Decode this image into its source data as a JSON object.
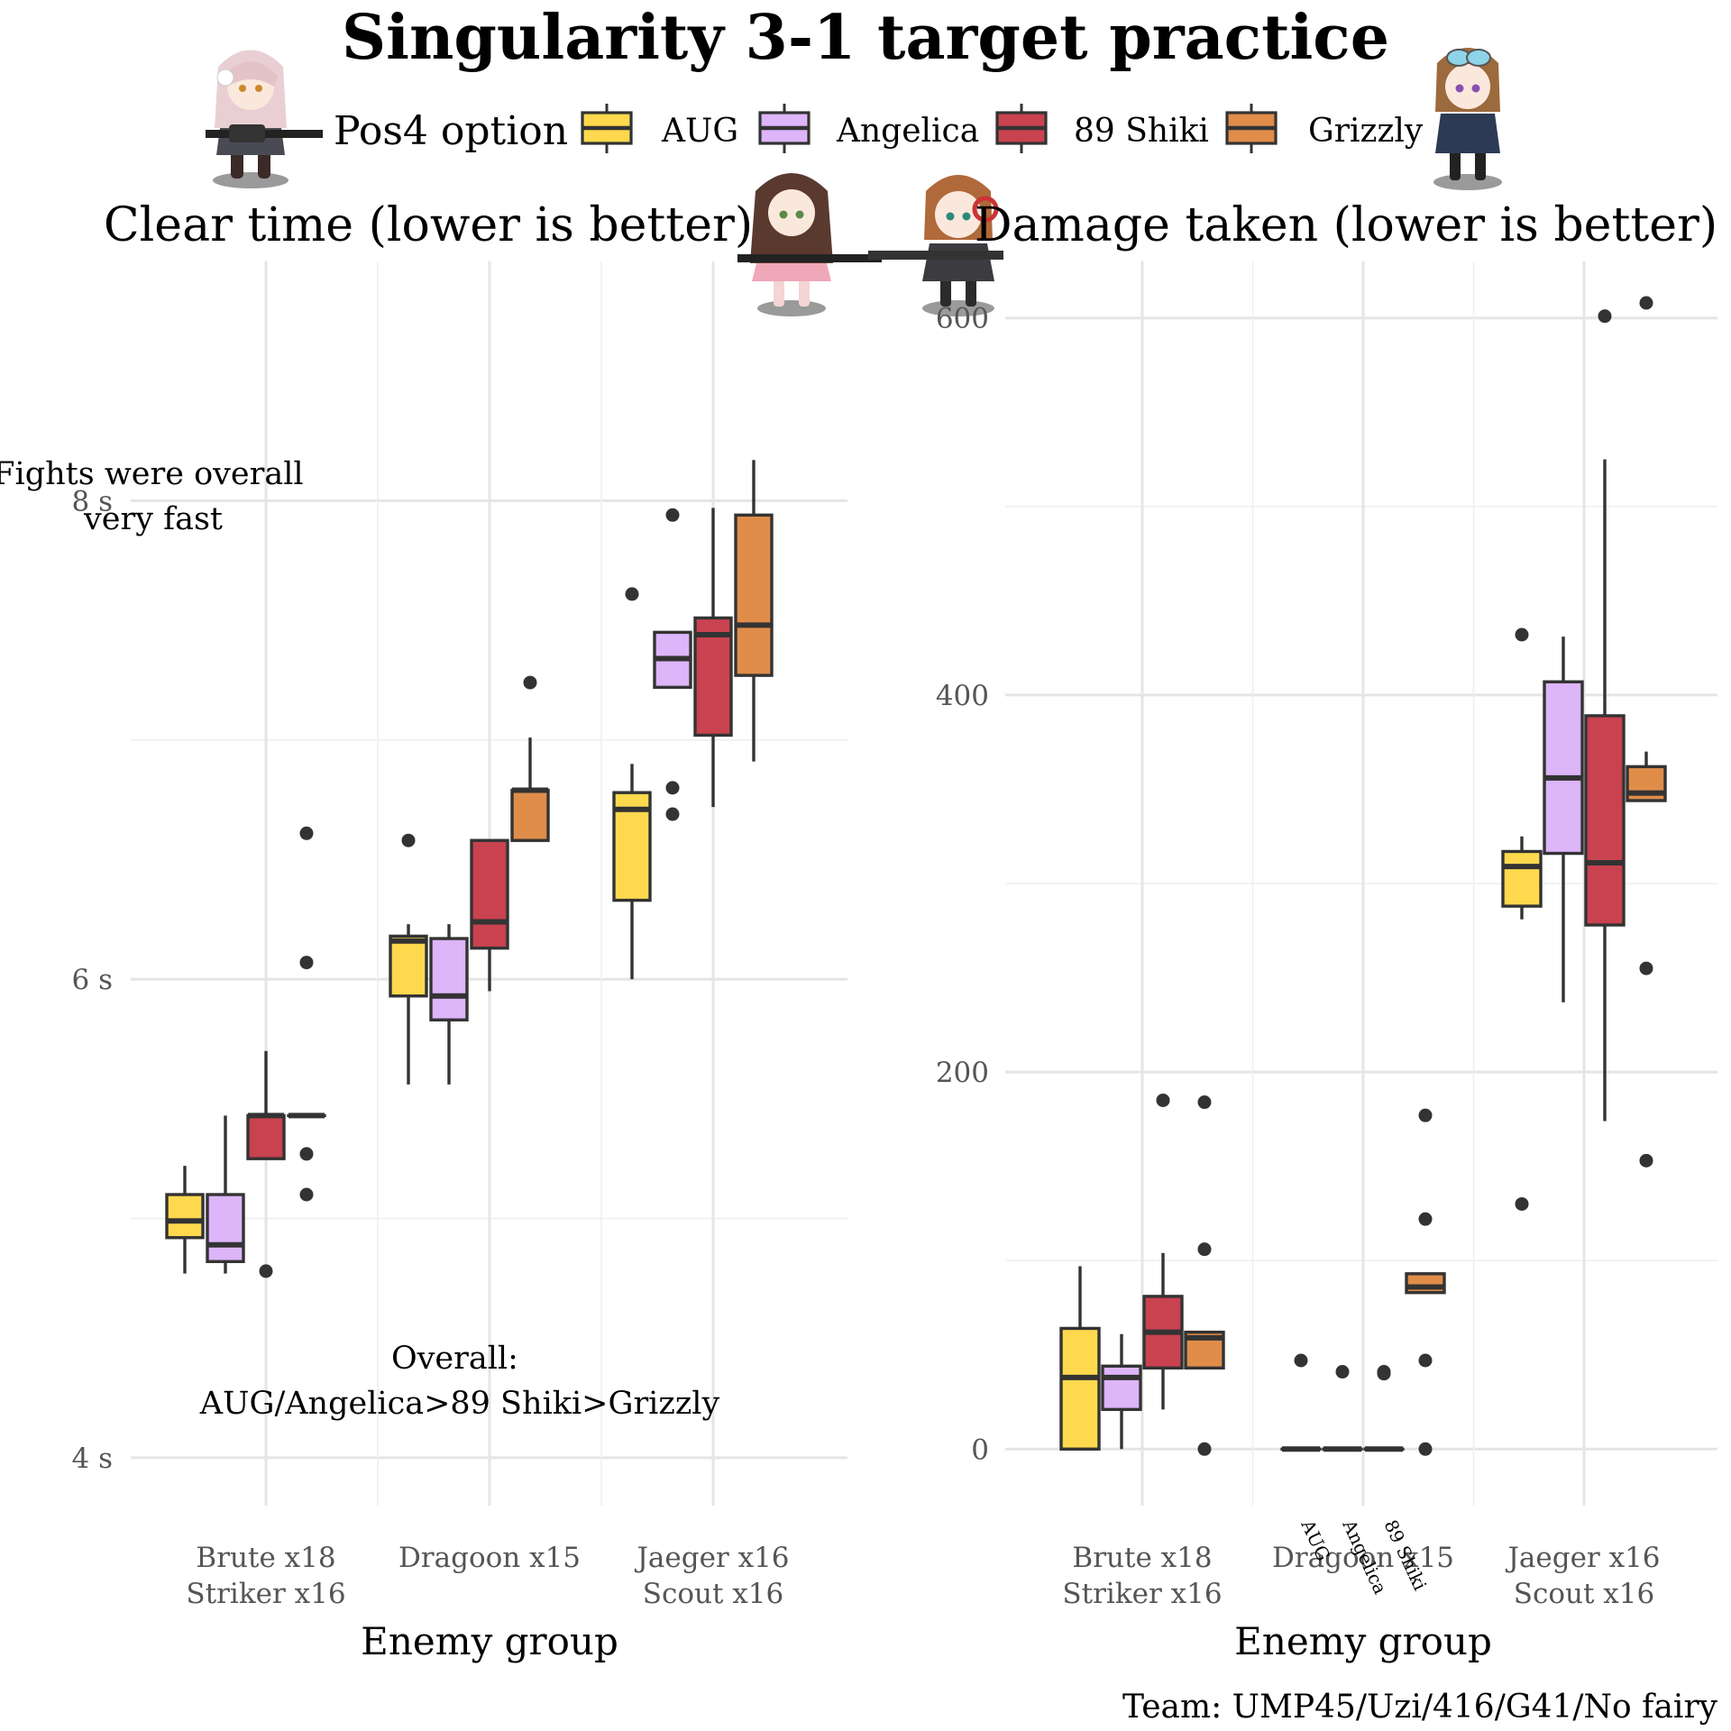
{
  "title": "Singularity 3-1 target practice",
  "caption": "Team: UMP45/Uzi/416/G41/No fairy",
  "legend": {
    "title": "Pos4 option",
    "position": "top",
    "items": [
      {
        "label": "AUG",
        "color": "#FFD94D"
      },
      {
        "label": "Angelica",
        "color": "#DDB5F9"
      },
      {
        "label": "89 Shiki",
        "color": "#C9424F"
      },
      {
        "label": "Grizzly",
        "color": "#E08D4A"
      }
    ]
  },
  "decorations": [
    "chibi-character-pink-hair",
    "chibi-character-brown-hair",
    "chibi-character-headphones",
    "chibi-character-goggles"
  ],
  "chart_data": [
    {
      "type": "box",
      "title": "Clear time (lower is better)",
      "xlabel": "Enemy group",
      "ylabel": "",
      "ylim": [
        3.8,
        9.0
      ],
      "y_tick_values": [
        4,
        6,
        8
      ],
      "y_tick_labels": [
        "4 s",
        "6 s",
        "8 s"
      ],
      "grid": true,
      "categories": [
        "Brute x18\nStriker x16",
        "Dragoon x15",
        "Jaeger x16\nScout x16"
      ],
      "annotations": [
        {
          "text": "Fights were overall\nvery fast"
        },
        {
          "text": "Overall:\nAUG/Angelica>89 Shiki>Grizzly"
        }
      ],
      "series": [
        {
          "name": "AUG",
          "boxes": [
            {
              "whislo": 4.77,
              "q1": 4.92,
              "med": 4.99,
              "q3": 5.1,
              "whishi": 5.22,
              "fliers": []
            },
            {
              "whislo": 5.56,
              "q1": 5.93,
              "med": 6.16,
              "q3": 6.18,
              "whishi": 6.23,
              "fliers": [
                6.58
              ]
            },
            {
              "whislo": 6.0,
              "q1": 6.33,
              "med": 6.71,
              "q3": 6.78,
              "whishi": 6.9,
              "fliers": [
                7.61
              ]
            }
          ]
        },
        {
          "name": "Angelica",
          "boxes": [
            {
              "whislo": 4.77,
              "q1": 4.82,
              "med": 4.89,
              "q3": 5.1,
              "whishi": 5.43,
              "fliers": []
            },
            {
              "whislo": 5.56,
              "q1": 5.83,
              "med": 5.93,
              "q3": 6.17,
              "whishi": 6.23,
              "fliers": []
            },
            {
              "whislo": 7.22,
              "q1": 7.22,
              "med": 7.34,
              "q3": 7.45,
              "whishi": 7.45,
              "fliers": [
                7.94,
                6.8,
                6.69
              ]
            }
          ]
        },
        {
          "name": "89 Shiki",
          "boxes": [
            {
              "whislo": 5.25,
              "q1": 5.25,
              "med": 5.43,
              "q3": 5.43,
              "whishi": 5.7,
              "fliers": [
                4.78
              ]
            },
            {
              "whislo": 5.95,
              "q1": 6.13,
              "med": 6.24,
              "q3": 6.58,
              "whishi": 6.58,
              "fliers": []
            },
            {
              "whislo": 6.72,
              "q1": 7.02,
              "med": 7.44,
              "q3": 7.51,
              "whishi": 7.97,
              "fliers": []
            }
          ]
        },
        {
          "name": "Grizzly",
          "boxes": [
            {
              "whislo": 5.43,
              "q1": 5.43,
              "med": 5.43,
              "q3": 5.43,
              "whishi": 5.43,
              "fliers": [
                6.61,
                6.07,
                5.27,
                5.1
              ]
            },
            {
              "whislo": 6.58,
              "q1": 6.58,
              "med": 6.79,
              "q3": 6.79,
              "whishi": 7.01,
              "fliers": [
                7.24
              ]
            },
            {
              "whislo": 6.91,
              "q1": 7.27,
              "med": 7.48,
              "q3": 7.94,
              "whishi": 8.17,
              "fliers": []
            }
          ]
        }
      ]
    },
    {
      "type": "box",
      "title": "Damage taken (lower is better)",
      "xlabel": "Enemy group",
      "ylabel": "",
      "ylim": [
        -30,
        630
      ],
      "y_tick_values": [
        0,
        200,
        400,
        600
      ],
      "y_tick_labels": [
        "0",
        "200",
        "400",
        "600"
      ],
      "grid": true,
      "categories": [
        "Brute x18\nStriker x16",
        "Dragoon x15",
        "Jaeger x16\nScout x16"
      ],
      "annotations": [
        {
          "text": "AUG"
        },
        {
          "text": "Angelica"
        },
        {
          "text": "89 Shiki"
        }
      ],
      "series": [
        {
          "name": "AUG",
          "boxes": [
            {
              "whislo": 0,
              "q1": 0,
              "med": 38,
              "q3": 64,
              "whishi": 97,
              "fliers": []
            },
            {
              "whislo": 0,
              "q1": 0,
              "med": 0,
              "q3": 0,
              "whishi": 0,
              "fliers": [
                47
              ]
            },
            {
              "whislo": 281,
              "q1": 288,
              "med": 309,
              "q3": 317,
              "whishi": 325,
              "fliers": [
                432,
                130
              ]
            }
          ]
        },
        {
          "name": "Angelica",
          "boxes": [
            {
              "whislo": 0,
              "q1": 21,
              "med": 38,
              "q3": 44,
              "whishi": 61,
              "fliers": []
            },
            {
              "whislo": 0,
              "q1": 0,
              "med": 0,
              "q3": 0,
              "whishi": 0,
              "fliers": [
                41
              ]
            },
            {
              "whislo": 237,
              "q1": 316,
              "med": 356,
              "q3": 407,
              "whishi": 431,
              "fliers": []
            }
          ]
        },
        {
          "name": "89 Shiki",
          "boxes": [
            {
              "whislo": 21,
              "q1": 43,
              "med": 62,
              "q3": 81,
              "whishi": 104,
              "fliers": [
                185
              ]
            },
            {
              "whislo": 0,
              "q1": 0,
              "med": 0,
              "q3": 0,
              "whishi": 0,
              "fliers": [
                41,
                40
              ]
            },
            {
              "whislo": 174,
              "q1": 278,
              "med": 311,
              "q3": 389,
              "whishi": 525,
              "fliers": [
                601
              ]
            }
          ]
        },
        {
          "name": "Grizzly",
          "boxes": [
            {
              "whislo": 43,
              "q1": 43,
              "med": 59,
              "q3": 62,
              "whishi": 62,
              "fliers": [
                184,
                106,
                0
              ]
            },
            {
              "whislo": 83,
              "q1": 83,
              "med": 86,
              "q3": 93,
              "whishi": 93,
              "fliers": [
                177,
                122,
                47,
                0
              ]
            },
            {
              "whislo": 344,
              "q1": 344,
              "med": 348,
              "q3": 362,
              "whishi": 370,
              "fliers": [
                608,
                255,
                153
              ]
            }
          ]
        }
      ]
    }
  ]
}
